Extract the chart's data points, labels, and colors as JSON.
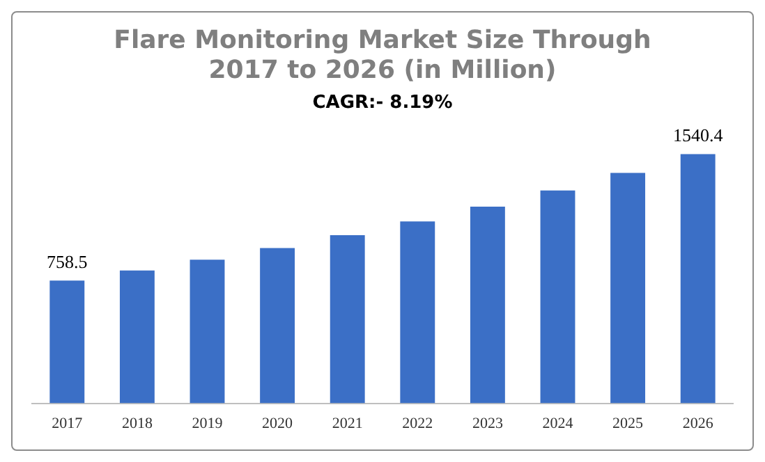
{
  "chart_data": {
    "type": "bar",
    "title": "Flare Monitoring Market Size Through 2017 to 2026 (in Million)",
    "subtitle": "CAGR:- 8.19%",
    "categories": [
      "2017",
      "2018",
      "2019",
      "2020",
      "2021",
      "2022",
      "2023",
      "2024",
      "2025",
      "2026"
    ],
    "values": [
      758.5,
      821,
      888,
      960,
      1039,
      1124,
      1216,
      1316,
      1424,
      1540.4
    ],
    "value_labels": [
      "758.5",
      null,
      null,
      null,
      null,
      null,
      null,
      null,
      null,
      "1540.4"
    ],
    "color": "#3b6fc6",
    "grid": false,
    "legend": false
  }
}
